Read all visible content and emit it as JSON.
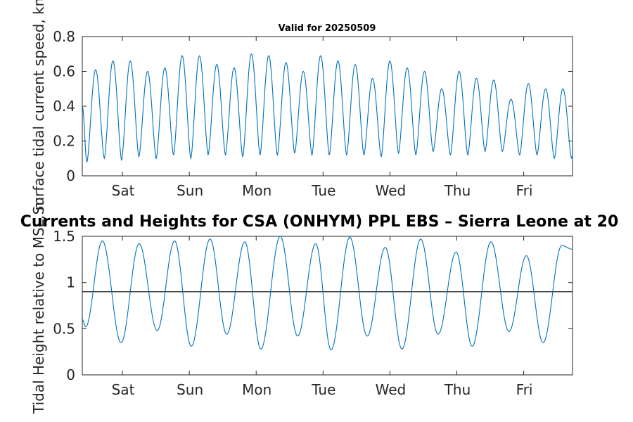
{
  "chart_data": [
    {
      "type": "line",
      "title": "Valid for 20250509",
      "ylabel": "Surface tidal current speed, kn",
      "xlabel": "",
      "ylim": [
        0,
        0.8
      ],
      "yticks": [
        0,
        0.2,
        0.4,
        0.6,
        0.8
      ],
      "ytick_labels": [
        "0",
        "0.2",
        "0.4",
        "0.6",
        "0.8"
      ],
      "xlim": [
        0,
        7.33
      ],
      "xticks": [
        0.6,
        1.6,
        2.6,
        3.6,
        4.6,
        5.6,
        6.6
      ],
      "xtick_labels": [
        "Sat",
        "Sun",
        "Mon",
        "Tue",
        "Wed",
        "Thu",
        "Fri"
      ],
      "grid": false,
      "color": "#0072BD",
      "series": [
        {
          "type": "semidiurnal_speed",
          "period_days": 0.2588,
          "first_minimum_day": 0.07,
          "start_value": 0.4,
          "maxima": [
            0.61,
            0.66,
            0.66,
            0.6,
            0.62,
            0.69,
            0.69,
            0.64,
            0.62,
            0.7,
            0.69,
            0.65,
            0.6,
            0.69,
            0.66,
            0.64,
            0.56,
            0.66,
            0.62,
            0.6,
            0.5,
            0.6,
            0.56,
            0.55,
            0.44,
            0.53,
            0.5
          ],
          "minima": [
            0.08,
            0.1,
            0.09,
            0.11,
            0.1,
            0.12,
            0.1,
            0.12,
            0.12,
            0.11,
            0.12,
            0.12,
            0.13,
            0.12,
            0.12,
            0.12,
            0.12,
            0.11,
            0.13,
            0.12,
            0.14,
            0.12,
            0.12,
            0.14,
            0.14,
            0.12,
            0.12,
            0.1
          ]
        }
      ]
    },
    {
      "type": "line",
      "title": "Currents and Heights for CSA (ONHYM) PPL EBS  – Sierra Leone at 20",
      "ylabel": "Tidal Height relative to MSL, m",
      "xlabel": "",
      "ylim": [
        0,
        1.5
      ],
      "yticks": [
        0,
        0.5,
        1,
        1.5
      ],
      "ytick_labels": [
        "0",
        "0.5",
        "1",
        "1.5"
      ],
      "xlim": [
        0,
        7.33
      ],
      "xticks": [
        0.6,
        1.6,
        2.6,
        3.6,
        4.6,
        5.6,
        6.6
      ],
      "xtick_labels": [
        "Sat",
        "Sun",
        "Mon",
        "Tue",
        "Wed",
        "Thu",
        "Fri"
      ],
      "grid": false,
      "color": "#0072BD",
      "reference_line": {
        "value": 0.9,
        "color": "#000000"
      },
      "series": [
        {
          "type": "semidiurnal_height",
          "start_value": 0.6,
          "extrema": [
            [
              0.05,
              0.52
            ],
            [
              0.3,
              1.45
            ],
            [
              0.58,
              0.35
            ],
            [
              0.85,
              1.42
            ],
            [
              1.12,
              0.48
            ],
            [
              1.38,
              1.45
            ],
            [
              1.63,
              0.31
            ],
            [
              1.91,
              1.47
            ],
            [
              2.16,
              0.44
            ],
            [
              2.43,
              1.44
            ],
            [
              2.67,
              0.28
            ],
            [
              2.96,
              1.5
            ],
            [
              3.22,
              0.42
            ],
            [
              3.49,
              1.42
            ],
            [
              3.72,
              0.27
            ],
            [
              4.0,
              1.49
            ],
            [
              4.26,
              0.42
            ],
            [
              4.53,
              1.38
            ],
            [
              4.78,
              0.28
            ],
            [
              5.06,
              1.47
            ],
            [
              5.32,
              0.44
            ],
            [
              5.59,
              1.33
            ],
            [
              5.83,
              0.31
            ],
            [
              6.11,
              1.44
            ],
            [
              6.38,
              0.47
            ],
            [
              6.64,
              1.29
            ],
            [
              6.89,
              0.35
            ],
            [
              7.17,
              1.4
            ],
            [
              7.33,
              1.36
            ]
          ]
        }
      ]
    }
  ]
}
